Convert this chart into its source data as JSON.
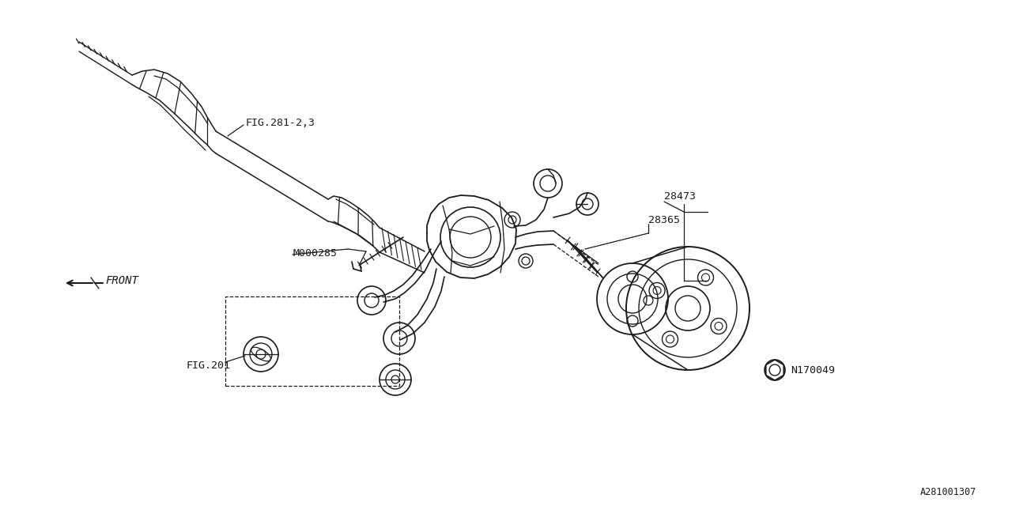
{
  "bg_color": "#ffffff",
  "line_color": "#1a1a1a",
  "fig_id": "A281001307",
  "labels": {
    "fig281": "FIG.281-2,3",
    "m000285": "M000285",
    "fig201": "FIG.201",
    "part28473": "28473",
    "part28365": "28365",
    "partN170049": "N170049"
  },
  "front_label": "FRONT",
  "figsize": [
    12.8,
    6.4
  ],
  "dpi": 100
}
